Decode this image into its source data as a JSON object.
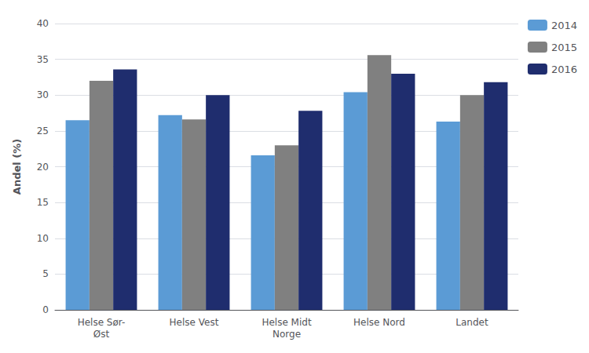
{
  "chart_data": {
    "type": "bar",
    "ylabel": "Andel (%)",
    "categories": [
      "Helse Sør-\nØst",
      "Helse Vest",
      "Helse Midt\nNorge",
      "Helse Nord",
      "Landet"
    ],
    "series": [
      {
        "name": "2014",
        "color": "#5B9BD5",
        "values": [
          26.5,
          27.2,
          21.6,
          30.4,
          26.3
        ]
      },
      {
        "name": "2015",
        "color": "#808080",
        "values": [
          32.0,
          26.6,
          23.0,
          35.6,
          30.0
        ]
      },
      {
        "name": "2016",
        "color": "#1F2D6E",
        "values": [
          33.6,
          30.0,
          27.8,
          33.0,
          31.8
        ]
      }
    ],
    "ylim": [
      0,
      40
    ],
    "yticks": [
      0,
      5,
      10,
      15,
      20,
      25,
      30,
      35,
      40
    ],
    "grid": true,
    "legend": "right"
  }
}
